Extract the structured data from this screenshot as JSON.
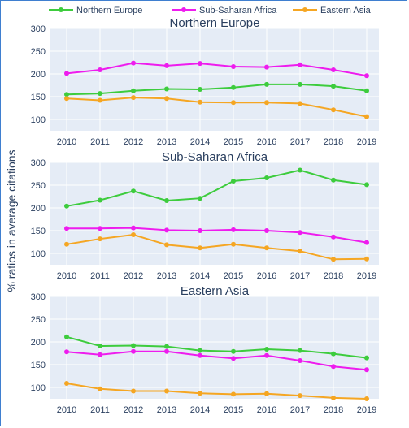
{
  "chart_data": {
    "type": "line",
    "ylabel": "% ratios in average citations",
    "legend": {
      "placement": "top",
      "entries": [
        "Northern Europe",
        "Sub-Saharan Africa",
        "Eastern Asia"
      ]
    },
    "colors": {
      "Northern Europe": "#3dcc3d",
      "Sub-Saharan Africa": "#ee1cee",
      "Eastern Asia": "#f5a623",
      "plot_background": "#e5ecf6",
      "grid": "#ffffff",
      "frame": "#3f7fd0"
    },
    "x": [
      "2010",
      "2011",
      "2012",
      "2013",
      "2014",
      "2015",
      "2016",
      "2017",
      "2018",
      "2019"
    ],
    "y_ticks": [
      100,
      150,
      200,
      250,
      300
    ],
    "ylim": [
      75,
      300
    ],
    "grid": true,
    "panels": [
      {
        "title": "Northern Europe",
        "series": [
          {
            "name": "Northern Europe",
            "values": [
              155,
              157,
              163,
              167,
              166,
              170,
              177,
              177,
              173,
              163
            ]
          },
          {
            "name": "Sub-Saharan Africa",
            "values": [
              201,
              209,
              224,
              218,
              223,
              216,
              215,
              220,
              209,
              196
            ]
          },
          {
            "name": "Eastern Asia",
            "values": [
              146,
              142,
              148,
              146,
              138,
              137,
              137,
              135,
              121,
              106
            ]
          }
        ]
      },
      {
        "title": "Sub-Saharan Africa",
        "series": [
          {
            "name": "Northern Europe",
            "values": [
              204,
              217,
              237,
              216,
              221,
              259,
              266,
              283,
              261,
              251
            ]
          },
          {
            "name": "Sub-Saharan Africa",
            "values": [
              155,
              155,
              156,
              151,
              150,
              152,
              150,
              146,
              136,
              124
            ]
          },
          {
            "name": "Eastern Asia",
            "values": [
              120,
              132,
              141,
              119,
              112,
              120,
              112,
              105,
              87,
              88
            ]
          }
        ]
      },
      {
        "title": "Eastern Asia",
        "series": [
          {
            "name": "Northern Europe",
            "values": [
              211,
              191,
              192,
              190,
              181,
              179,
              184,
              181,
              174,
              165
            ]
          },
          {
            "name": "Sub-Saharan Africa",
            "values": [
              178,
              172,
              179,
              179,
              170,
              164,
              170,
              159,
              146,
              139
            ]
          },
          {
            "name": "Eastern Asia",
            "values": [
              109,
              97,
              92,
              92,
              87,
              85,
              86,
              82,
              77,
              75
            ]
          }
        ]
      }
    ]
  }
}
